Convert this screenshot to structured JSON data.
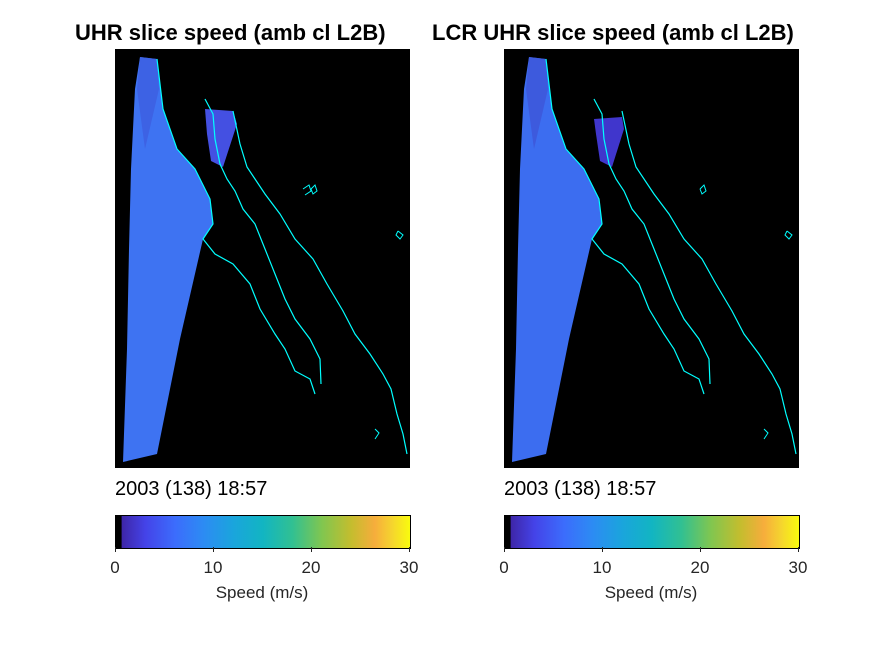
{
  "panels": [
    {
      "title": "UHR slice speed (amb cl L2B)",
      "timestamp": "2003 (138) 18:57"
    },
    {
      "title": "LCR UHR slice speed (amb cl L2B)",
      "timestamp": "2003 (138) 18:57"
    }
  ],
  "colorbar": {
    "label": "Speed (m/s)",
    "ticks": [
      "0",
      "10",
      "20",
      "30"
    ],
    "tick_values": [
      0,
      10,
      20,
      30
    ],
    "range": [
      0,
      30
    ],
    "colormap": [
      "#000000",
      "#3e26a8",
      "#4443e8",
      "#3c6cfc",
      "#2c8cf3",
      "#1aa5dc",
      "#12b5c2",
      "#31c092",
      "#80c650",
      "#c4bd2e",
      "#f6ad3c",
      "#f5d52e",
      "#f9fb0e"
    ]
  },
  "chart_data": [
    {
      "type": "heatmap",
      "title": "UHR slice speed (amb cl L2B)",
      "annotation": "2003 (138) 18:57",
      "colorbar_label": "Speed (m/s)",
      "clim": [
        0,
        30
      ],
      "swath_speed_typical": 8,
      "land_speed": 0,
      "coastline_color": "#00ffff"
    },
    {
      "type": "heatmap",
      "title": "LCR UHR slice speed (amb cl L2B)",
      "annotation": "2003 (138) 18:57",
      "colorbar_label": "Speed (m/s)",
      "clim": [
        0,
        30
      ],
      "swath_speed_typical": 8,
      "land_speed": 0,
      "coastline_color": "#00ffff"
    }
  ]
}
